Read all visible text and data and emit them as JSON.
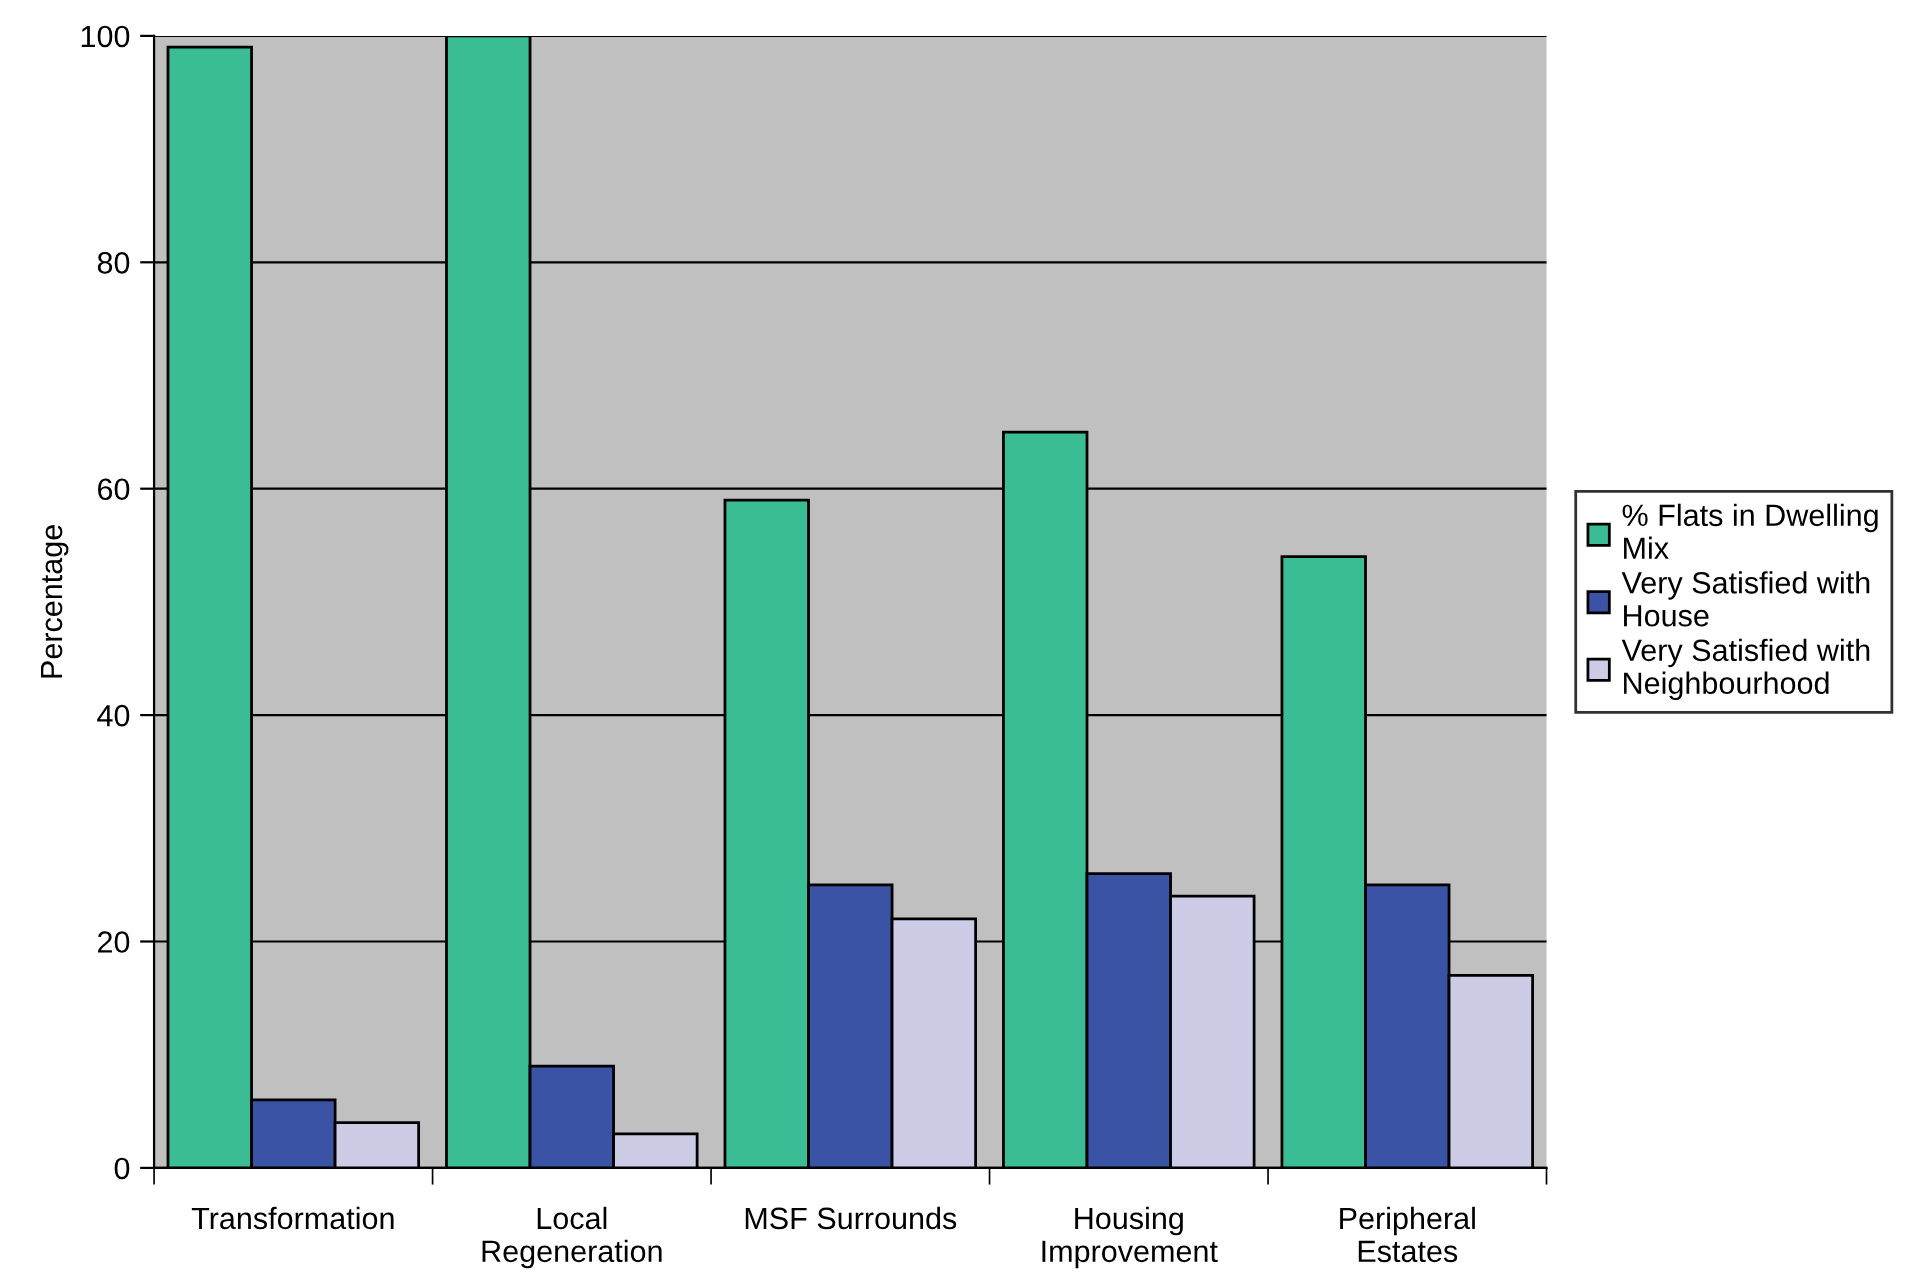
{
  "chart_data": {
    "type": "bar",
    "ylabel": "Percentage",
    "categories": [
      "Transformation",
      "Local\nRegeneration",
      "MSF Surrounds",
      "Housing\nImprovement",
      "Peripheral\nEstates"
    ],
    "series": [
      {
        "name": "% Flats in Dwelling\nMix",
        "color": "#3abd94",
        "values": [
          99,
          100,
          59,
          65,
          54
        ]
      },
      {
        "name": "Very Satisfied with\nHouse",
        "color": "#3a53a4",
        "values": [
          6,
          9,
          25,
          26,
          25
        ]
      },
      {
        "name": "Very Satisfied with\nNeighbourhood",
        "color": "#cccce6",
        "values": [
          4,
          3,
          22,
          24,
          17
        ]
      }
    ],
    "ylim": [
      0,
      100
    ],
    "yticks": [
      0,
      20,
      40,
      60,
      80,
      100
    ],
    "grid": "y",
    "legend": "right"
  }
}
